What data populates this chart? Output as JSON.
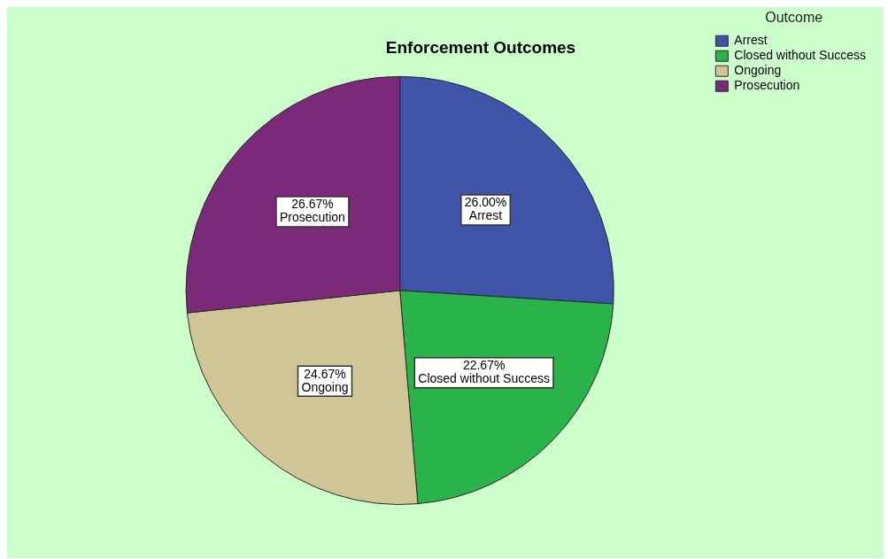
{
  "chart_data": {
    "type": "pie",
    "title": "Enforcement Outcomes",
    "legend_title": "Outcome",
    "legend": "top right",
    "categories": [
      "Arrest",
      "Closed without Success",
      "Ongoing",
      "Prosecution"
    ],
    "values": [
      26.0,
      22.67,
      24.67,
      26.67
    ],
    "value_labels": [
      "26.00%",
      "22.67%",
      "24.67%",
      "26.67%"
    ],
    "colors": [
      "#3f53a8",
      "#2ab34a",
      "#cfc597",
      "#7a2a78"
    ]
  }
}
